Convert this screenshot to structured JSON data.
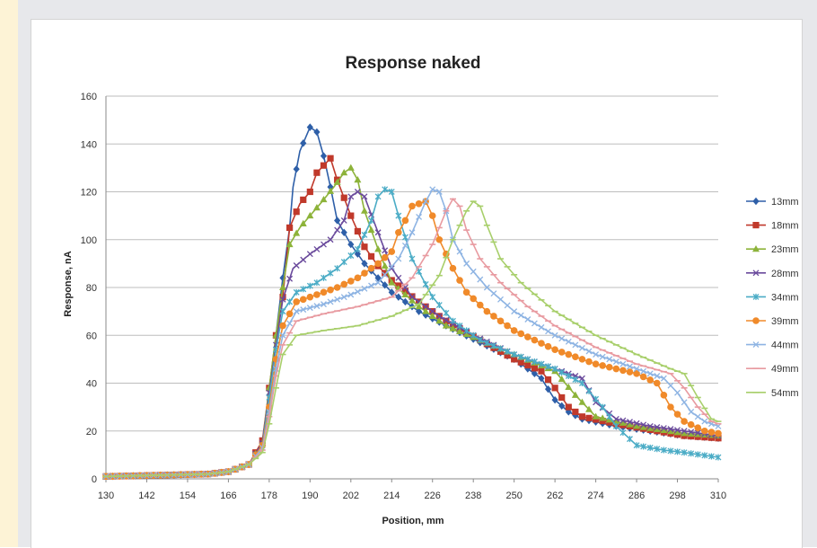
{
  "chart_data": {
    "type": "line",
    "title": "Response naked",
    "xlabel": "Position, mm",
    "ylabel": "Response, nA",
    "xlim": [
      130,
      310
    ],
    "ylim": [
      0,
      160
    ],
    "xticks": [
      130,
      142,
      154,
      166,
      178,
      190,
      202,
      214,
      226,
      238,
      250,
      262,
      274,
      286,
      298,
      310
    ],
    "yticks": [
      0,
      20,
      40,
      60,
      80,
      100,
      120,
      140,
      160
    ],
    "grid": "horizontal",
    "legend_position": "right",
    "series": [
      {
        "name": "13mm",
        "color": "#2e5fa8",
        "marker": "diamond",
        "points": [
          [
            130,
            1
          ],
          [
            160,
            2
          ],
          [
            166,
            3
          ],
          [
            172,
            6
          ],
          [
            176,
            15
          ],
          [
            178,
            35
          ],
          [
            180,
            60
          ],
          [
            182,
            84
          ],
          [
            184,
            105
          ],
          [
            185,
            122
          ],
          [
            187,
            137
          ],
          [
            190,
            147
          ],
          [
            192,
            145
          ],
          [
            194,
            135
          ],
          [
            196,
            122
          ],
          [
            198,
            108
          ],
          [
            202,
            98
          ],
          [
            206,
            90
          ],
          [
            210,
            84
          ],
          [
            214,
            78
          ],
          [
            222,
            70
          ],
          [
            230,
            64
          ],
          [
            240,
            57
          ],
          [
            250,
            50
          ],
          [
            258,
            42
          ],
          [
            262,
            33
          ],
          [
            266,
            28
          ],
          [
            270,
            25
          ],
          [
            280,
            22
          ],
          [
            300,
            18
          ],
          [
            310,
            17
          ]
        ]
      },
      {
        "name": "18mm",
        "color": "#c0392b",
        "marker": "square",
        "points": [
          [
            130,
            1
          ],
          [
            160,
            2
          ],
          [
            166,
            3
          ],
          [
            172,
            6
          ],
          [
            176,
            16
          ],
          [
            178,
            38
          ],
          [
            180,
            60
          ],
          [
            182,
            76
          ],
          [
            184,
            105
          ],
          [
            187,
            115
          ],
          [
            190,
            120
          ],
          [
            192,
            128
          ],
          [
            196,
            134
          ],
          [
            198,
            125
          ],
          [
            202,
            110
          ],
          [
            206,
            97
          ],
          [
            210,
            89
          ],
          [
            214,
            83
          ],
          [
            222,
            74
          ],
          [
            230,
            66
          ],
          [
            240,
            58
          ],
          [
            250,
            50
          ],
          [
            258,
            45
          ],
          [
            262,
            38
          ],
          [
            266,
            30
          ],
          [
            270,
            26
          ],
          [
            280,
            23
          ],
          [
            300,
            18
          ],
          [
            310,
            17
          ]
        ]
      },
      {
        "name": "23mm",
        "color": "#8db33a",
        "marker": "triangle",
        "points": [
          [
            130,
            1
          ],
          [
            160,
            2
          ],
          [
            166,
            3
          ],
          [
            172,
            6
          ],
          [
            176,
            15
          ],
          [
            178,
            38
          ],
          [
            180,
            60
          ],
          [
            182,
            80
          ],
          [
            184,
            98
          ],
          [
            187,
            105
          ],
          [
            190,
            110
          ],
          [
            193,
            115
          ],
          [
            197,
            122
          ],
          [
            200,
            128
          ],
          [
            202,
            130
          ],
          [
            204,
            125
          ],
          [
            206,
            112
          ],
          [
            210,
            96
          ],
          [
            214,
            82
          ],
          [
            222,
            72
          ],
          [
            230,
            64
          ],
          [
            240,
            58
          ],
          [
            250,
            52
          ],
          [
            262,
            45
          ],
          [
            268,
            35
          ],
          [
            274,
            26
          ],
          [
            286,
            22
          ],
          [
            300,
            19
          ],
          [
            310,
            18
          ]
        ]
      },
      {
        "name": "28mm",
        "color": "#6a4a9c",
        "marker": "cross",
        "points": [
          [
            130,
            1
          ],
          [
            160,
            2
          ],
          [
            166,
            3
          ],
          [
            172,
            6
          ],
          [
            176,
            15
          ],
          [
            178,
            36
          ],
          [
            180,
            56
          ],
          [
            182,
            75
          ],
          [
            185,
            88
          ],
          [
            190,
            94
          ],
          [
            196,
            100
          ],
          [
            200,
            108
          ],
          [
            202,
            118
          ],
          [
            204,
            120
          ],
          [
            206,
            118
          ],
          [
            210,
            103
          ],
          [
            214,
            88
          ],
          [
            220,
            76
          ],
          [
            228,
            68
          ],
          [
            238,
            60
          ],
          [
            250,
            52
          ],
          [
            262,
            46
          ],
          [
            270,
            42
          ],
          [
            274,
            32
          ],
          [
            280,
            25
          ],
          [
            290,
            22
          ],
          [
            300,
            20
          ],
          [
            310,
            18
          ]
        ]
      },
      {
        "name": "34mm",
        "color": "#4bacc6",
        "marker": "star",
        "points": [
          [
            130,
            1
          ],
          [
            160,
            2
          ],
          [
            166,
            3
          ],
          [
            172,
            6
          ],
          [
            176,
            14
          ],
          [
            178,
            34
          ],
          [
            180,
            54
          ],
          [
            182,
            70
          ],
          [
            186,
            78
          ],
          [
            192,
            82
          ],
          [
            198,
            88
          ],
          [
            204,
            96
          ],
          [
            208,
            108
          ],
          [
            210,
            118
          ],
          [
            212,
            121
          ],
          [
            214,
            120
          ],
          [
            216,
            110
          ],
          [
            220,
            92
          ],
          [
            226,
            76
          ],
          [
            232,
            66
          ],
          [
            240,
            58
          ],
          [
            250,
            52
          ],
          [
            262,
            46
          ],
          [
            270,
            40
          ],
          [
            276,
            30
          ],
          [
            280,
            22
          ],
          [
            286,
            14
          ],
          [
            294,
            12
          ],
          [
            300,
            11
          ],
          [
            310,
            9
          ]
        ]
      },
      {
        "name": "39mm",
        "color": "#f08a2a",
        "marker": "circle",
        "points": [
          [
            130,
            1
          ],
          [
            160,
            2
          ],
          [
            166,
            3
          ],
          [
            172,
            6
          ],
          [
            176,
            14
          ],
          [
            178,
            30
          ],
          [
            180,
            50
          ],
          [
            182,
            64
          ],
          [
            186,
            74
          ],
          [
            192,
            77
          ],
          [
            198,
            80
          ],
          [
            204,
            84
          ],
          [
            210,
            90
          ],
          [
            214,
            95
          ],
          [
            216,
            103
          ],
          [
            218,
            108
          ],
          [
            220,
            114
          ],
          [
            224,
            116
          ],
          [
            226,
            110
          ],
          [
            228,
            100
          ],
          [
            232,
            88
          ],
          [
            236,
            78
          ],
          [
            242,
            70
          ],
          [
            250,
            62
          ],
          [
            262,
            54
          ],
          [
            274,
            48
          ],
          [
            286,
            44
          ],
          [
            292,
            40
          ],
          [
            296,
            30
          ],
          [
            300,
            24
          ],
          [
            306,
            20
          ],
          [
            310,
            19
          ]
        ]
      },
      {
        "name": "44mm",
        "color": "#8eb4e3",
        "marker": "cross",
        "points": [
          [
            130,
            1
          ],
          [
            160,
            2
          ],
          [
            166,
            3
          ],
          [
            172,
            6
          ],
          [
            176,
            13
          ],
          [
            178,
            28
          ],
          [
            180,
            46
          ],
          [
            182,
            60
          ],
          [
            186,
            70
          ],
          [
            194,
            73
          ],
          [
            202,
            77
          ],
          [
            210,
            82
          ],
          [
            216,
            92
          ],
          [
            220,
            103
          ],
          [
            224,
            116
          ],
          [
            226,
            121
          ],
          [
            228,
            120
          ],
          [
            230,
            112
          ],
          [
            232,
            100
          ],
          [
            236,
            90
          ],
          [
            242,
            80
          ],
          [
            250,
            70
          ],
          [
            262,
            60
          ],
          [
            274,
            52
          ],
          [
            286,
            46
          ],
          [
            294,
            42
          ],
          [
            298,
            36
          ],
          [
            302,
            28
          ],
          [
            306,
            24
          ],
          [
            310,
            22
          ]
        ]
      },
      {
        "name": "49mm",
        "color": "#e89aa0",
        "marker": "dash",
        "points": [
          [
            130,
            1
          ],
          [
            160,
            2
          ],
          [
            166,
            3
          ],
          [
            172,
            6
          ],
          [
            176,
            12
          ],
          [
            178,
            26
          ],
          [
            180,
            43
          ],
          [
            182,
            56
          ],
          [
            186,
            66
          ],
          [
            194,
            69
          ],
          [
            204,
            72
          ],
          [
            214,
            76
          ],
          [
            220,
            84
          ],
          [
            226,
            98
          ],
          [
            230,
            112
          ],
          [
            232,
            117
          ],
          [
            234,
            114
          ],
          [
            236,
            104
          ],
          [
            240,
            92
          ],
          [
            246,
            82
          ],
          [
            254,
            72
          ],
          [
            262,
            64
          ],
          [
            274,
            55
          ],
          [
            286,
            48
          ],
          [
            296,
            44
          ],
          [
            300,
            38
          ],
          [
            304,
            30
          ],
          [
            308,
            24
          ],
          [
            310,
            23
          ]
        ]
      },
      {
        "name": "54mm",
        "color": "#a8cf6b",
        "marker": "dash",
        "points": [
          [
            130,
            1
          ],
          [
            160,
            2
          ],
          [
            166,
            3
          ],
          [
            172,
            6
          ],
          [
            176,
            11
          ],
          [
            178,
            23
          ],
          [
            180,
            38
          ],
          [
            182,
            52
          ],
          [
            186,
            60
          ],
          [
            194,
            62
          ],
          [
            204,
            64
          ],
          [
            214,
            68
          ],
          [
            222,
            73
          ],
          [
            228,
            85
          ],
          [
            232,
            100
          ],
          [
            236,
            112
          ],
          [
            238,
            116
          ],
          [
            240,
            114
          ],
          [
            242,
            106
          ],
          [
            246,
            92
          ],
          [
            252,
            82
          ],
          [
            262,
            70
          ],
          [
            274,
            60
          ],
          [
            286,
            52
          ],
          [
            296,
            46
          ],
          [
            300,
            44
          ],
          [
            304,
            34
          ],
          [
            308,
            25
          ],
          [
            310,
            24
          ]
        ]
      }
    ]
  }
}
